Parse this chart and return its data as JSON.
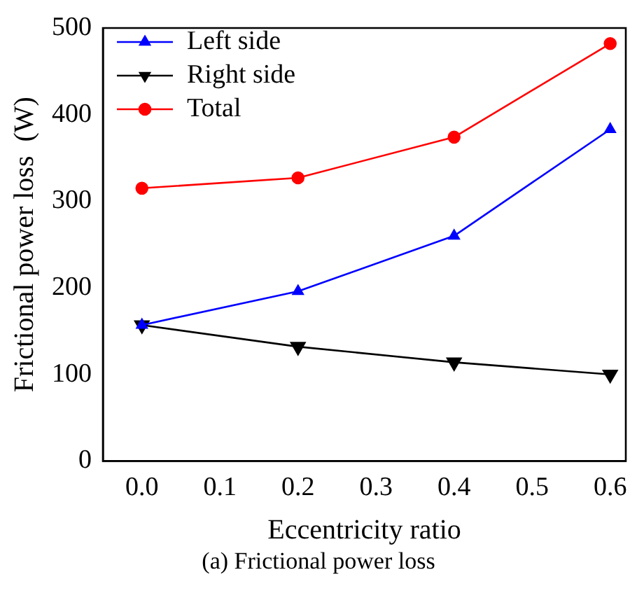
{
  "chart_data": {
    "type": "line",
    "xlabel": "Eccentricity ratio",
    "ylabel": "Frictional power loss  (W)",
    "x": [
      0.0,
      0.2,
      0.4,
      0.6
    ],
    "series": [
      {
        "name": "Left side",
        "color": "#0000ff",
        "marker": "triangle",
        "values": [
          157,
          196,
          260,
          383
        ]
      },
      {
        "name": "Right side",
        "color": "#000000",
        "marker": "triangle_down",
        "values": [
          157,
          132,
          114,
          100
        ]
      },
      {
        "name": "Total",
        "color": "#ff0000",
        "marker": "circle",
        "values": [
          315,
          327,
          374,
          482
        ]
      }
    ],
    "xlim": [
      -0.05,
      0.62
    ],
    "xticks": [
      {
        "value": 0.0,
        "label": "0.0"
      },
      0.1,
      0.2,
      0.3,
      0.4,
      0.5,
      0.6
    ],
    "ylim": [
      0,
      500
    ],
    "yticks": [
      0,
      100,
      200,
      300,
      400,
      500
    ],
    "grid": false,
    "legend": "top left",
    "line_style": "solid",
    "annotations": [
      "(a) Frictional power loss"
    ]
  }
}
